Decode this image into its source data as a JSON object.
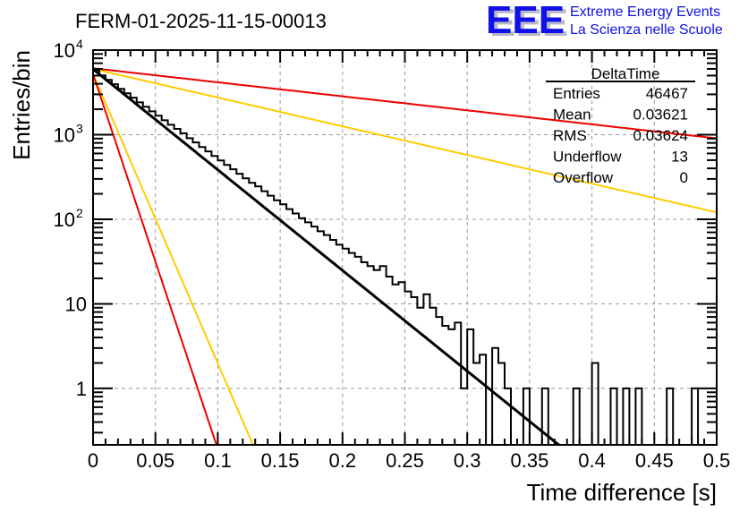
{
  "chart_data": {
    "type": "bar",
    "title": "FERM-01-2025-11-15-00013",
    "xlabel": "Time difference [s]",
    "ylabel": "Entries/bin",
    "xlim": [
      0,
      0.5
    ],
    "ylim": [
      0.215,
      10000
    ],
    "yscale": "log",
    "grid": true,
    "bin_width": 0.005,
    "x_ticks": [
      "0",
      "0.05",
      "0.1",
      "0.15",
      "0.2",
      "0.25",
      "0.3",
      "0.35",
      "0.4",
      "0.45",
      "0.5"
    ],
    "x_tick_values": [
      0,
      0.05,
      0.1,
      0.15,
      0.2,
      0.25,
      0.3,
      0.35,
      0.4,
      0.45,
      0.5
    ],
    "y_ticks": [
      {
        "value": 10000,
        "base": "10",
        "exp": "4"
      },
      {
        "value": 1000,
        "base": "10",
        "exp": "3"
      },
      {
        "value": 100,
        "base": "10",
        "exp": "2"
      },
      {
        "value": 10,
        "base": "10",
        "exp": ""
      },
      {
        "value": 1,
        "base": "1",
        "exp": ""
      }
    ],
    "histogram": {
      "name": "DeltaTime",
      "color": "#000000",
      "values": [
        5800,
        5020,
        4440,
        3950,
        3480,
        3090,
        2740,
        2410,
        2140,
        1890,
        1680,
        1480,
        1310,
        1170,
        1040,
        910,
        810,
        715,
        635,
        560,
        495,
        440,
        390,
        345,
        305,
        270,
        245,
        215,
        190,
        168,
        150,
        132,
        117,
        103,
        92,
        82,
        72,
        65,
        57,
        50,
        45,
        40,
        36,
        31,
        28,
        25,
        28,
        21,
        17,
        18,
        14,
        12,
        9,
        13,
        9,
        7,
        5.5,
        5,
        6,
        1,
        5,
        2,
        2.5,
        0,
        3,
        2,
        1,
        0,
        0,
        1,
        0,
        0,
        1,
        0,
        0,
        0,
        0,
        1,
        0,
        0,
        2,
        0,
        0,
        1,
        0,
        1,
        0,
        1,
        0,
        0,
        0,
        0,
        1,
        0,
        0,
        0,
        1,
        0,
        0,
        0
      ]
    },
    "fits": [
      {
        "name": "fit",
        "color": "#000000",
        "amplitude": 5950,
        "tau": 0.0365
      },
      {
        "name": "fit-upper-steep",
        "color": "#ffcc00",
        "amplitude": 5200,
        "tau": 0.0127
      },
      {
        "name": "fit-lower-steep",
        "color": "#ee0000",
        "amplitude": 5200,
        "tau": 0.0098
      },
      {
        "name": "fit-upper-shallow",
        "color": "#ee0000",
        "amplitude": 6100,
        "tau": 0.262
      },
      {
        "name": "fit-lower-shallow",
        "color": "#ffcc00",
        "amplitude": 6000,
        "tau": 0.128
      }
    ],
    "stats_box": {
      "title": "DeltaTime",
      "rows": [
        {
          "label": "Entries",
          "value": "46467"
        },
        {
          "label": "Mean",
          "value": "0.03621"
        },
        {
          "label": "RMS",
          "value": "0.03624"
        },
        {
          "label": "Underflow",
          "value": "13"
        },
        {
          "label": "Overflow",
          "value": "0"
        }
      ]
    }
  },
  "logo": {
    "mark": "EEE",
    "line1": "Extreme Energy Events",
    "line2": "La Scienza nelle Scuole",
    "color": "#1010e8"
  }
}
